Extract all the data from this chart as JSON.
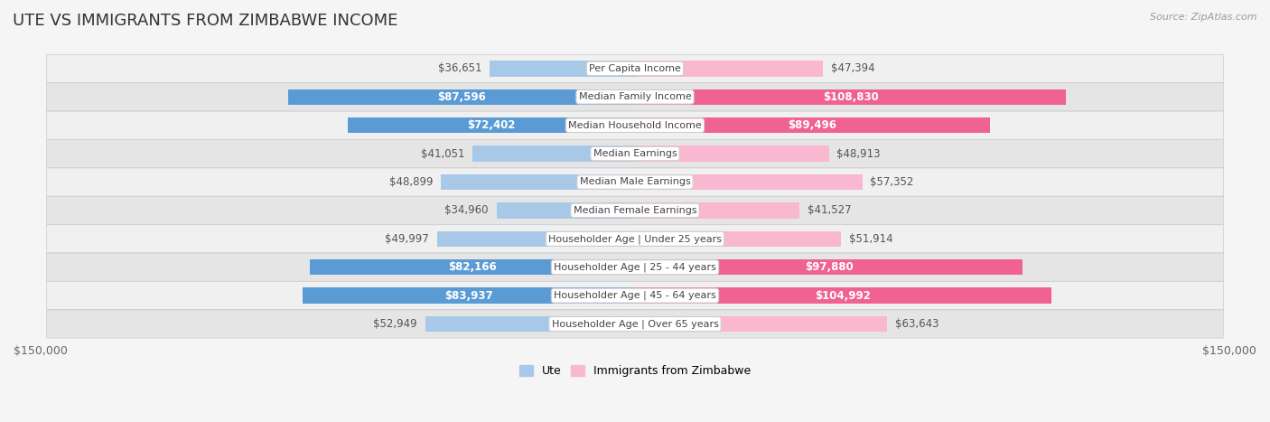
{
  "title": "UTE VS IMMIGRANTS FROM ZIMBABWE INCOME",
  "source": "Source: ZipAtlas.com",
  "categories": [
    "Per Capita Income",
    "Median Family Income",
    "Median Household Income",
    "Median Earnings",
    "Median Male Earnings",
    "Median Female Earnings",
    "Householder Age | Under 25 years",
    "Householder Age | 25 - 44 years",
    "Householder Age | 45 - 64 years",
    "Householder Age | Over 65 years"
  ],
  "ute_values": [
    36651,
    87596,
    72402,
    41051,
    48899,
    34960,
    49997,
    82166,
    83937,
    52949
  ],
  "zim_values": [
    47394,
    108830,
    89496,
    48913,
    57352,
    41527,
    51914,
    97880,
    104992,
    63643
  ],
  "ute_labels": [
    "$36,651",
    "$87,596",
    "$72,402",
    "$41,051",
    "$48,899",
    "$34,960",
    "$49,997",
    "$82,166",
    "$83,937",
    "$52,949"
  ],
  "zim_labels": [
    "$47,394",
    "$108,830",
    "$89,496",
    "$48,913",
    "$57,352",
    "$41,527",
    "$51,914",
    "$97,880",
    "$104,992",
    "$63,643"
  ],
  "ute_light": "#a8c8e8",
  "ute_dark": "#5b9bd5",
  "zim_light": "#f9b8d0",
  "zim_dark": "#f06292",
  "large_threshold": 65000,
  "max_val": 150000,
  "bg_color": "#f5f5f5",
  "row_light": "#f0f0f0",
  "row_dark": "#e5e5e5",
  "title_fontsize": 13,
  "label_fontsize": 8.5,
  "cat_fontsize": 8,
  "axis_label": "$150,000",
  "legend_ute": "Ute",
  "legend_zim": "Immigrants from Zimbabwe"
}
